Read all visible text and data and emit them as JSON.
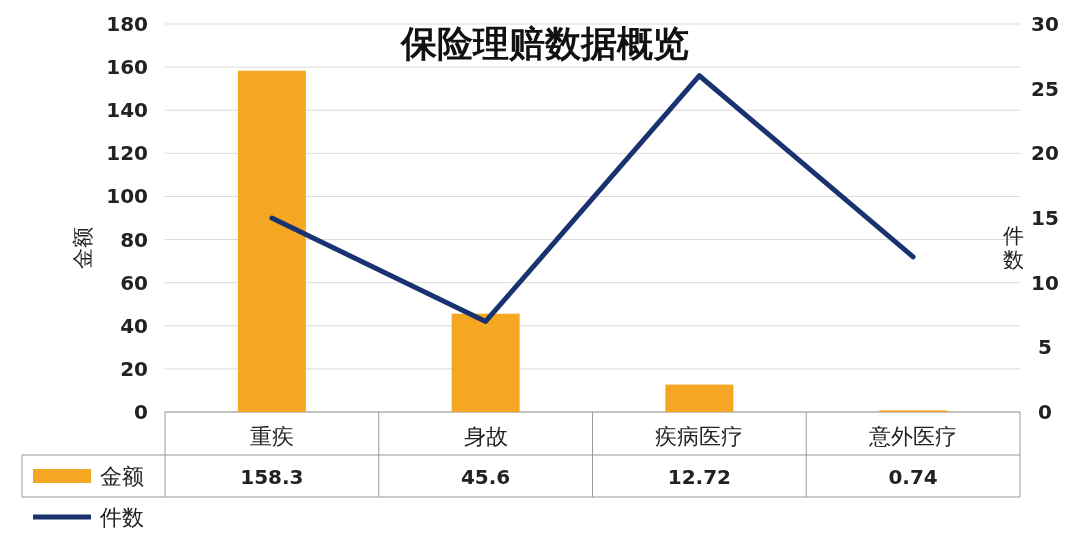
{
  "chart_data": {
    "type": "bar",
    "title": "保险理赔数据概览",
    "ylabel": "金额",
    "y2label": "件数",
    "categories": [
      "重疾",
      "身故",
      "疾病医疗",
      "意外医疗"
    ],
    "series": [
      {
        "name": "金额",
        "color": "#f5a623",
        "values": [
          158.3,
          45.6,
          12.72,
          0.74
        ],
        "value_labels": [
          "158.3",
          "45.6",
          "12.72",
          "0.74"
        ]
      },
      {
        "name": "件数",
        "type": "line",
        "axis": "y2",
        "color": "#1a3370",
        "values": [
          15,
          7,
          26,
          12
        ]
      }
    ],
    "ylim": [
      0,
      180
    ],
    "yticks": [
      0,
      20,
      40,
      60,
      80,
      100,
      120,
      140,
      160,
      180
    ],
    "y2lim": [
      0,
      30
    ],
    "y2ticks": [
      0,
      5,
      10,
      15,
      20,
      25,
      30
    ],
    "grid": "y",
    "legend": "bottom left",
    "marker": "none",
    "line_style": "solid"
  }
}
